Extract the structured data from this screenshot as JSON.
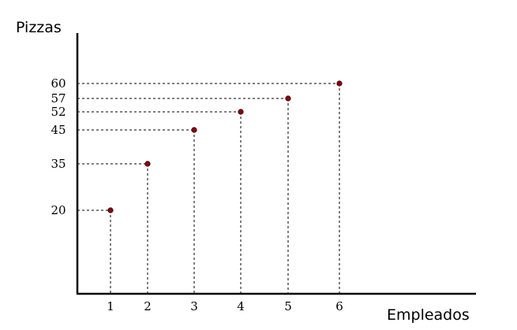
{
  "chart_data": {
    "type": "scatter",
    "title": "",
    "xlabel": "Empleados",
    "ylabel": "Pizzas",
    "x": [
      1,
      2,
      3,
      4,
      5,
      6
    ],
    "y": [
      20,
      35,
      45,
      52,
      57,
      60
    ],
    "x_tick_labels": [
      "1",
      "2",
      "3",
      "4",
      "5",
      "6"
    ],
    "y_tick_labels": [
      "20",
      "35",
      "45",
      "52",
      "57",
      "60"
    ],
    "xlim": [
      0,
      10.5
    ],
    "ylim": [
      0,
      68
    ],
    "grid": false,
    "guide_lines": "dashed",
    "point_color": "#8b0000",
    "axis_color": "#000000"
  }
}
